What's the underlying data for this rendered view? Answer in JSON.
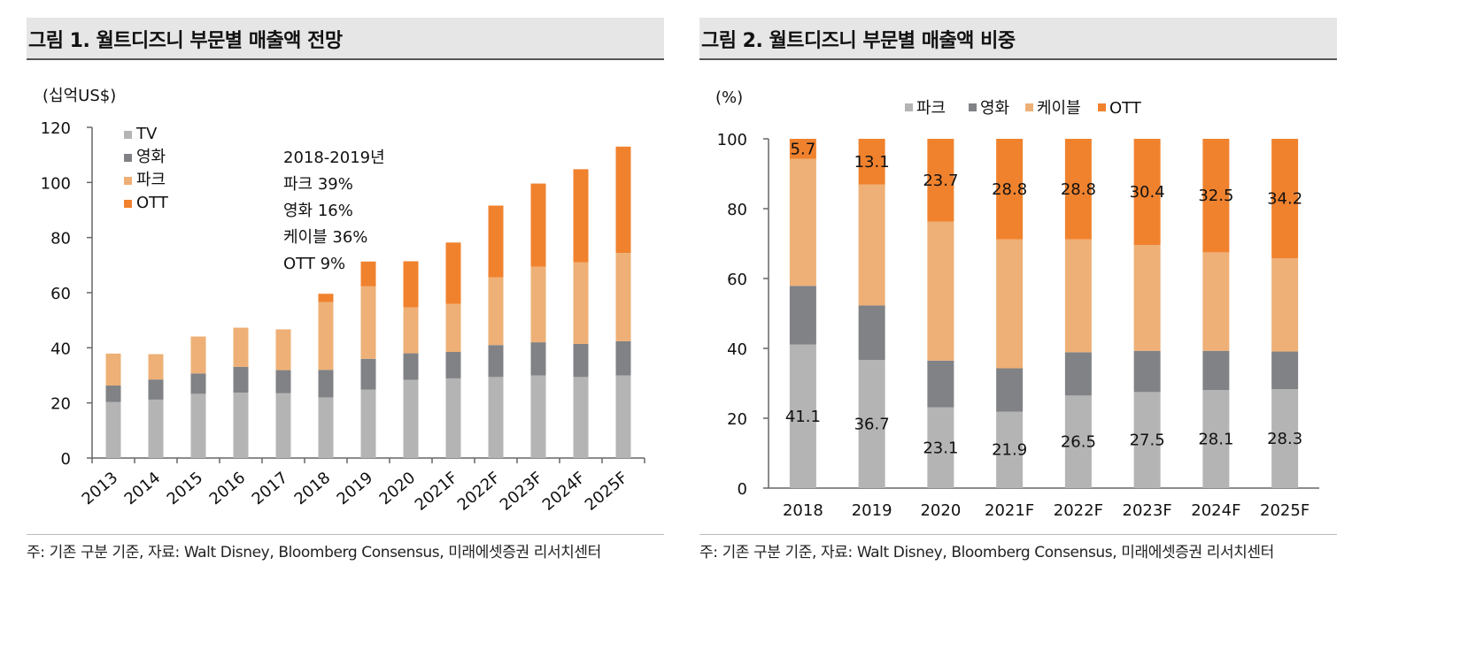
{
  "colors": {
    "tv": "#b4b4b4",
    "film": "#808285",
    "cable": "#eeb076",
    "ott": "#f0822e",
    "axis": "#666666"
  },
  "chart_data": [
    {
      "type": "bar",
      "stacked": true,
      "title": "그림 1. 월트디즈니 부문별 매출액 전망",
      "ylabel": "(십억US$)",
      "ylim": [
        0,
        120
      ],
      "yticks": [
        "0",
        "20",
        "40",
        "60",
        "80",
        "100",
        "120"
      ],
      "categories": [
        "2013",
        "2014",
        "2015",
        "2016",
        "2017",
        "2018",
        "2019",
        "2020",
        "2021F",
        "2022F",
        "2023F",
        "2024F",
        "2025F"
      ],
      "series": [
        {
          "name": "TV",
          "values": [
            20.3,
            21.2,
            23.3,
            23.7,
            23.5,
            22.0,
            24.8,
            28.4,
            28.9,
            29.4,
            30.0,
            29.4,
            30.0
          ]
        },
        {
          "name": "영화",
          "values": [
            6.0,
            7.3,
            7.4,
            9.4,
            8.4,
            10.0,
            11.2,
            9.6,
            9.6,
            11.6,
            12.0,
            12.0,
            12.4
          ]
        },
        {
          "name": "파크",
          "values": [
            11.6,
            9.2,
            13.4,
            14.2,
            14.8,
            24.6,
            26.3,
            16.7,
            17.4,
            24.6,
            27.4,
            29.6,
            32.0
          ]
        },
        {
          "name": "OTT",
          "values": [
            0,
            0,
            0,
            0,
            0,
            3.0,
            9.0,
            16.7,
            22.3,
            26.0,
            30.2,
            33.8,
            38.6
          ]
        }
      ],
      "legend": [
        "TV",
        "영화",
        "파크",
        "OTT"
      ],
      "legend_position": "top-left",
      "annotation": [
        "2018-2019년",
        "파크 39%",
        "영화 16%",
        "케이블 36%",
        "OTT 9%"
      ],
      "source": "주: 기존 구분 기준, 자료: Walt Disney, Bloomberg Consensus, 미래에셋증권 리서치센터"
    },
    {
      "type": "bar",
      "stacked": true,
      "percent": true,
      "title": "그림 2. 월트디즈니 부문별 매출액 비중",
      "ylabel": "(%)",
      "ylim": [
        0,
        100
      ],
      "yticks": [
        "0",
        "20",
        "40",
        "60",
        "80",
        "100"
      ],
      "categories": [
        "2018",
        "2019",
        "2020",
        "2021F",
        "2022F",
        "2023F",
        "2024F",
        "2025F"
      ],
      "series": [
        {
          "name": "파크",
          "values": [
            41.1,
            36.7,
            23.1,
            21.9,
            26.5,
            27.5,
            28.1,
            28.3
          ]
        },
        {
          "name": "영화",
          "values": [
            16.8,
            15.6,
            13.4,
            12.4,
            12.4,
            11.8,
            11.2,
            10.8
          ]
        },
        {
          "name": "케이블",
          "values": [
            36.4,
            34.6,
            39.8,
            36.9,
            32.3,
            30.3,
            28.2,
            26.7
          ]
        },
        {
          "name": "OTT",
          "values": [
            5.7,
            13.1,
            23.7,
            28.8,
            28.8,
            30.4,
            32.5,
            34.2
          ]
        }
      ],
      "data_labels": {
        "파크": [
          "41.1",
          "36.7",
          "23.1",
          "21.9",
          "26.5",
          "27.5",
          "28.1",
          "28.3"
        ],
        "OTT": [
          "5.7",
          "13.1",
          "23.7",
          "28.8",
          "28.8",
          "30.4",
          "32.5",
          "34.2"
        ]
      },
      "legend": [
        "파크",
        "영화",
        "케이블",
        "OTT"
      ],
      "legend_position": "top",
      "source": "주: 기존 구분 기준, 자료: Walt Disney, Bloomberg Consensus, 미래에셋증권 리서치센터"
    }
  ]
}
